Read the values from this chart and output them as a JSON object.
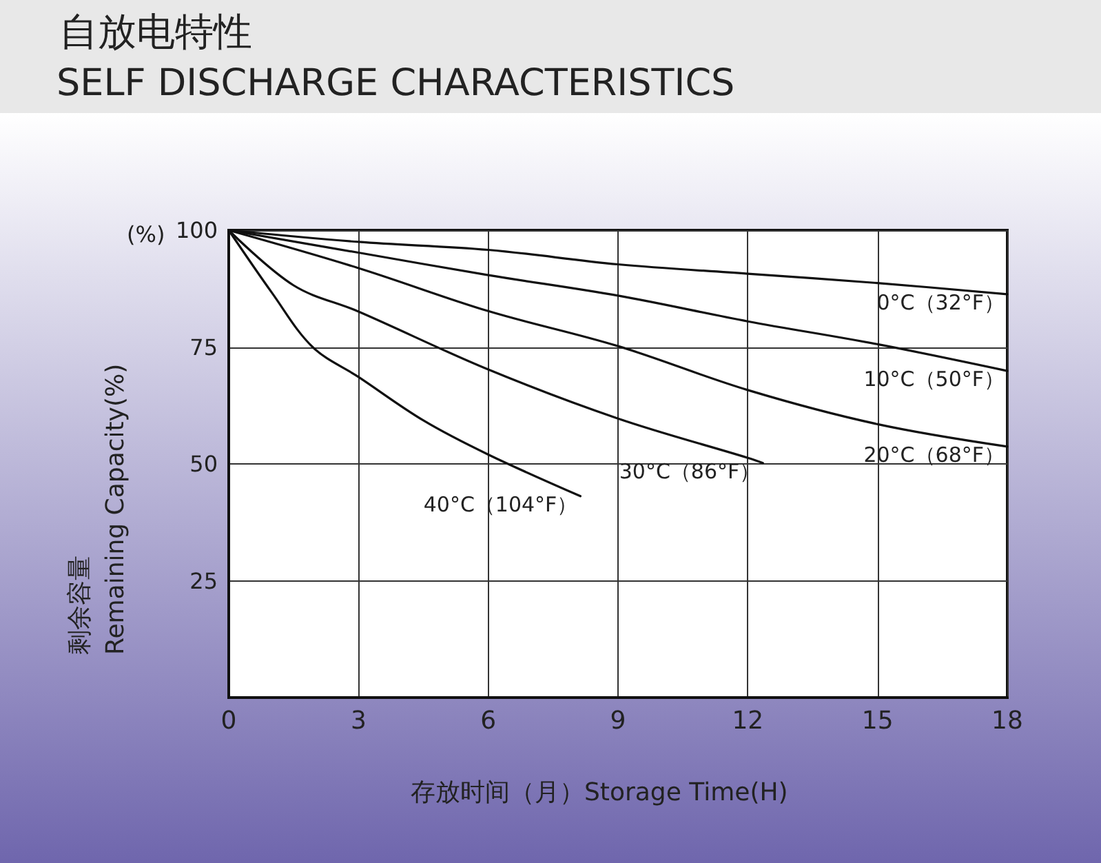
{
  "chart_data": {
    "type": "line",
    "title": "自放电特性",
    "subtitle": "SELF DISCHARGE CHARACTERISTICS",
    "xlabel": "存放时间（月）Storage Time(H)",
    "ylabel": "剩余容量\nRemaining Capacity(%)",
    "annotations": [
      "(%)"
    ],
    "xlim": [
      0,
      18
    ],
    "xticks": [
      0,
      3,
      6,
      9,
      12,
      15,
      18
    ],
    "ylim": [
      0,
      100
    ],
    "yticks": [
      25,
      50,
      75,
      100
    ],
    "grid": true,
    "legend": false,
    "marker": "none",
    "line_style": "solid",
    "series": [
      {
        "name": "0°C（32°F）",
        "color": "#111111",
        "x": [
          0,
          3,
          6,
          9,
          12,
          15,
          18
        ],
        "values": [
          100,
          97.5,
          95.8,
          92.7,
          90.7,
          88.7,
          86.3
        ]
      },
      {
        "name": "10°C（50°F）",
        "color": "#111111",
        "x": [
          0,
          3,
          6,
          9,
          12,
          15,
          18
        ],
        "values": [
          100,
          95.2,
          90.4,
          86,
          80.5,
          75.6,
          69.9
        ]
      },
      {
        "name": "20°C（68°F）",
        "color": "#111111",
        "x": [
          0,
          3,
          6,
          9,
          12,
          15,
          18
        ],
        "values": [
          100,
          91.9,
          82.7,
          75.2,
          65.8,
          58.5,
          53.7
        ]
      },
      {
        "name": "30°C（86°F）",
        "color": "#111111",
        "x": [
          0,
          1.5,
          3,
          6,
          9,
          12,
          12.35
        ],
        "values": [
          100,
          88.2,
          82.6,
          70.2,
          59.7,
          51.3,
          50.2
        ]
      },
      {
        "name": "40°C（104°F）",
        "color": "#111111",
        "x": [
          0,
          1,
          1.94,
          3,
          4.5,
          6,
          8.13
        ],
        "values": [
          100,
          86.6,
          75,
          68.6,
          59.3,
          52,
          43.1
        ]
      }
    ]
  }
}
